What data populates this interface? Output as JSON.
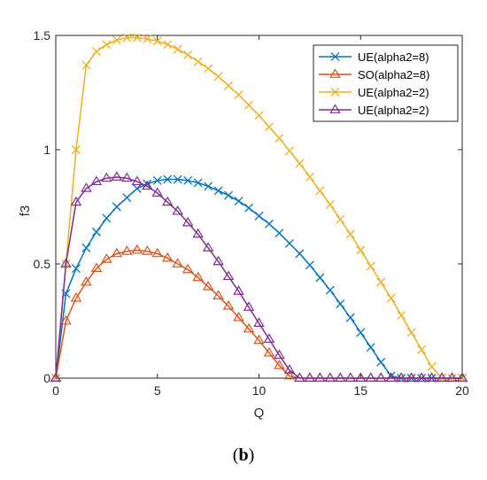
{
  "caption": {
    "open": "(",
    "letter": "b",
    "close": ")"
  },
  "chart_data": {
    "type": "line",
    "title": "",
    "xlabel": "Q",
    "ylabel": "f3",
    "xlim": [
      0,
      20
    ],
    "ylim": [
      0,
      1.5
    ],
    "xticks": [
      "0",
      "5",
      "10",
      "15",
      "20"
    ],
    "yticks": [
      "0",
      "0.5",
      "1",
      "1.5"
    ],
    "grid": false,
    "legend_position": "top-right",
    "x": [
      0,
      0.5,
      1,
      1.5,
      2,
      2.5,
      3,
      3.5,
      4,
      4.5,
      5,
      5.5,
      6,
      6.5,
      7,
      7.5,
      8,
      8.5,
      9,
      9.5,
      10,
      10.5,
      11,
      11.5,
      12,
      12.5,
      13,
      13.5,
      14,
      14.5,
      15,
      15.5,
      16,
      16.5,
      17,
      17.5,
      18,
      18.5,
      19,
      19.5,
      20
    ],
    "series": [
      {
        "name": "UE(alpha2=8)",
        "color": "#0072BD",
        "marker": "x",
        "values": [
          0,
          0.37,
          0.48,
          0.57,
          0.64,
          0.7,
          0.75,
          0.79,
          0.83,
          0.85,
          0.865,
          0.87,
          0.87,
          0.865,
          0.855,
          0.84,
          0.82,
          0.8,
          0.775,
          0.745,
          0.71,
          0.675,
          0.635,
          0.59,
          0.545,
          0.495,
          0.44,
          0.385,
          0.325,
          0.265,
          0.2,
          0.135,
          0.07,
          0.01,
          0,
          0,
          0,
          0,
          0,
          0,
          0
        ]
      },
      {
        "name": "SO(alpha2=8)",
        "color": "#D95319",
        "marker": "triangle",
        "values": [
          0,
          0.25,
          0.35,
          0.42,
          0.48,
          0.52,
          0.545,
          0.555,
          0.56,
          0.555,
          0.545,
          0.525,
          0.5,
          0.475,
          0.44,
          0.4,
          0.36,
          0.315,
          0.265,
          0.215,
          0.165,
          0.11,
          0.055,
          0.01,
          0,
          0,
          0,
          0,
          0,
          0,
          0,
          0,
          0,
          0,
          0,
          0,
          0,
          0,
          0,
          0,
          0
        ]
      },
      {
        "name": "UE(alpha2=2)",
        "color": "#EDB120",
        "marker": "x",
        "values": [
          0,
          0.5,
          1.0,
          1.37,
          1.43,
          1.46,
          1.48,
          1.49,
          1.49,
          1.485,
          1.475,
          1.46,
          1.44,
          1.415,
          1.385,
          1.355,
          1.32,
          1.28,
          1.24,
          1.195,
          1.15,
          1.1,
          1.05,
          0.995,
          0.94,
          0.88,
          0.82,
          0.76,
          0.695,
          0.63,
          0.56,
          0.49,
          0.42,
          0.35,
          0.275,
          0.2,
          0.125,
          0.05,
          0,
          0,
          0
        ]
      },
      {
        "name": "UE(alpha2=2)",
        "color": "#7E2F8E",
        "marker": "triangle",
        "values": [
          0,
          0.5,
          0.77,
          0.83,
          0.86,
          0.875,
          0.88,
          0.875,
          0.86,
          0.84,
          0.81,
          0.77,
          0.73,
          0.68,
          0.63,
          0.57,
          0.51,
          0.445,
          0.38,
          0.31,
          0.24,
          0.17,
          0.1,
          0.035,
          0,
          0,
          0,
          0,
          0,
          0,
          0,
          0,
          0,
          0,
          0,
          0,
          0,
          0,
          0,
          0,
          0
        ]
      }
    ]
  }
}
